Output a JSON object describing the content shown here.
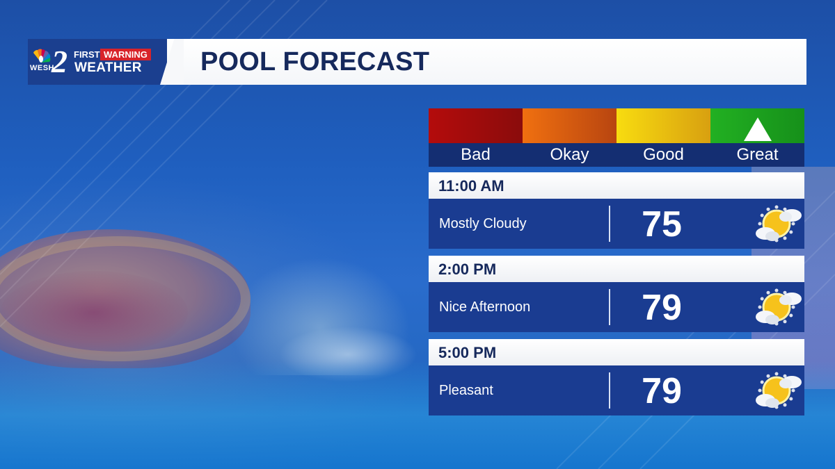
{
  "brand": {
    "station": "WESH",
    "number": "2",
    "first": "FIRST",
    "warning": "WARNING",
    "weather": "WEATHER"
  },
  "page_title": "POOL FORECAST",
  "scale": {
    "labels": [
      "Bad",
      "Okay",
      "Good",
      "Great"
    ],
    "selected": "Great",
    "colors": [
      "#b40c0c",
      "#f07010",
      "#f8dc10",
      "#22b022"
    ]
  },
  "forecast": [
    {
      "time": "11:00 AM",
      "condition": "Mostly Cloudy",
      "temp": "75",
      "icon": "partly-cloudy-sun-icon"
    },
    {
      "time": "2:00 PM",
      "condition": "Nice Afternoon",
      "temp": "79",
      "icon": "partly-cloudy-sun-icon"
    },
    {
      "time": "5:00 PM",
      "condition": "Pleasant",
      "temp": "79",
      "icon": "partly-cloudy-sun-icon"
    }
  ]
}
